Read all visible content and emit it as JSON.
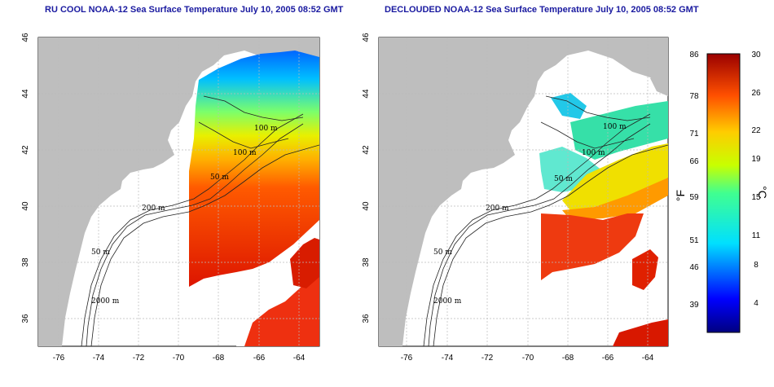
{
  "panels": [
    {
      "id": "left",
      "title": "RU COOL NOAA-12 Sea Surface Temperature July 10, 2005 08:52 GMT",
      "coverage": "cloudy"
    },
    {
      "id": "right",
      "title": "DECLOUDED NOAA-12 Sea Surface Temperature July 10, 2005 08:52 GMT",
      "coverage": "declouded"
    }
  ],
  "map_axes": {
    "lon_ticks": [
      "-76",
      "-74",
      "-72",
      "-70",
      "-68",
      "-66",
      "-64"
    ],
    "lat_ticks": [
      "46",
      "44",
      "42",
      "40",
      "38",
      "36"
    ],
    "lon_range": [
      -77,
      -63
    ],
    "lat_range": [
      35,
      46
    ]
  },
  "contour_labels": [
    "100 m",
    "100 m",
    "50 m",
    "200 m",
    "50 m",
    "2000 m"
  ],
  "colorbar": {
    "fahrenheit_ticks": [
      "86",
      "78",
      "71",
      "66",
      "59",
      "51",
      "46",
      "39"
    ],
    "celsius_ticks": [
      "30",
      "26",
      "22",
      "19",
      "15",
      "11",
      "8",
      "4"
    ],
    "fahrenheit_unit": "°F",
    "celsius_unit": "°C",
    "range_celsius": [
      0,
      30
    ]
  },
  "colors": {
    "land": "#bebebe",
    "water": "#ffffff",
    "title": "#1a1aa0",
    "grid": "#bbbbbb"
  }
}
